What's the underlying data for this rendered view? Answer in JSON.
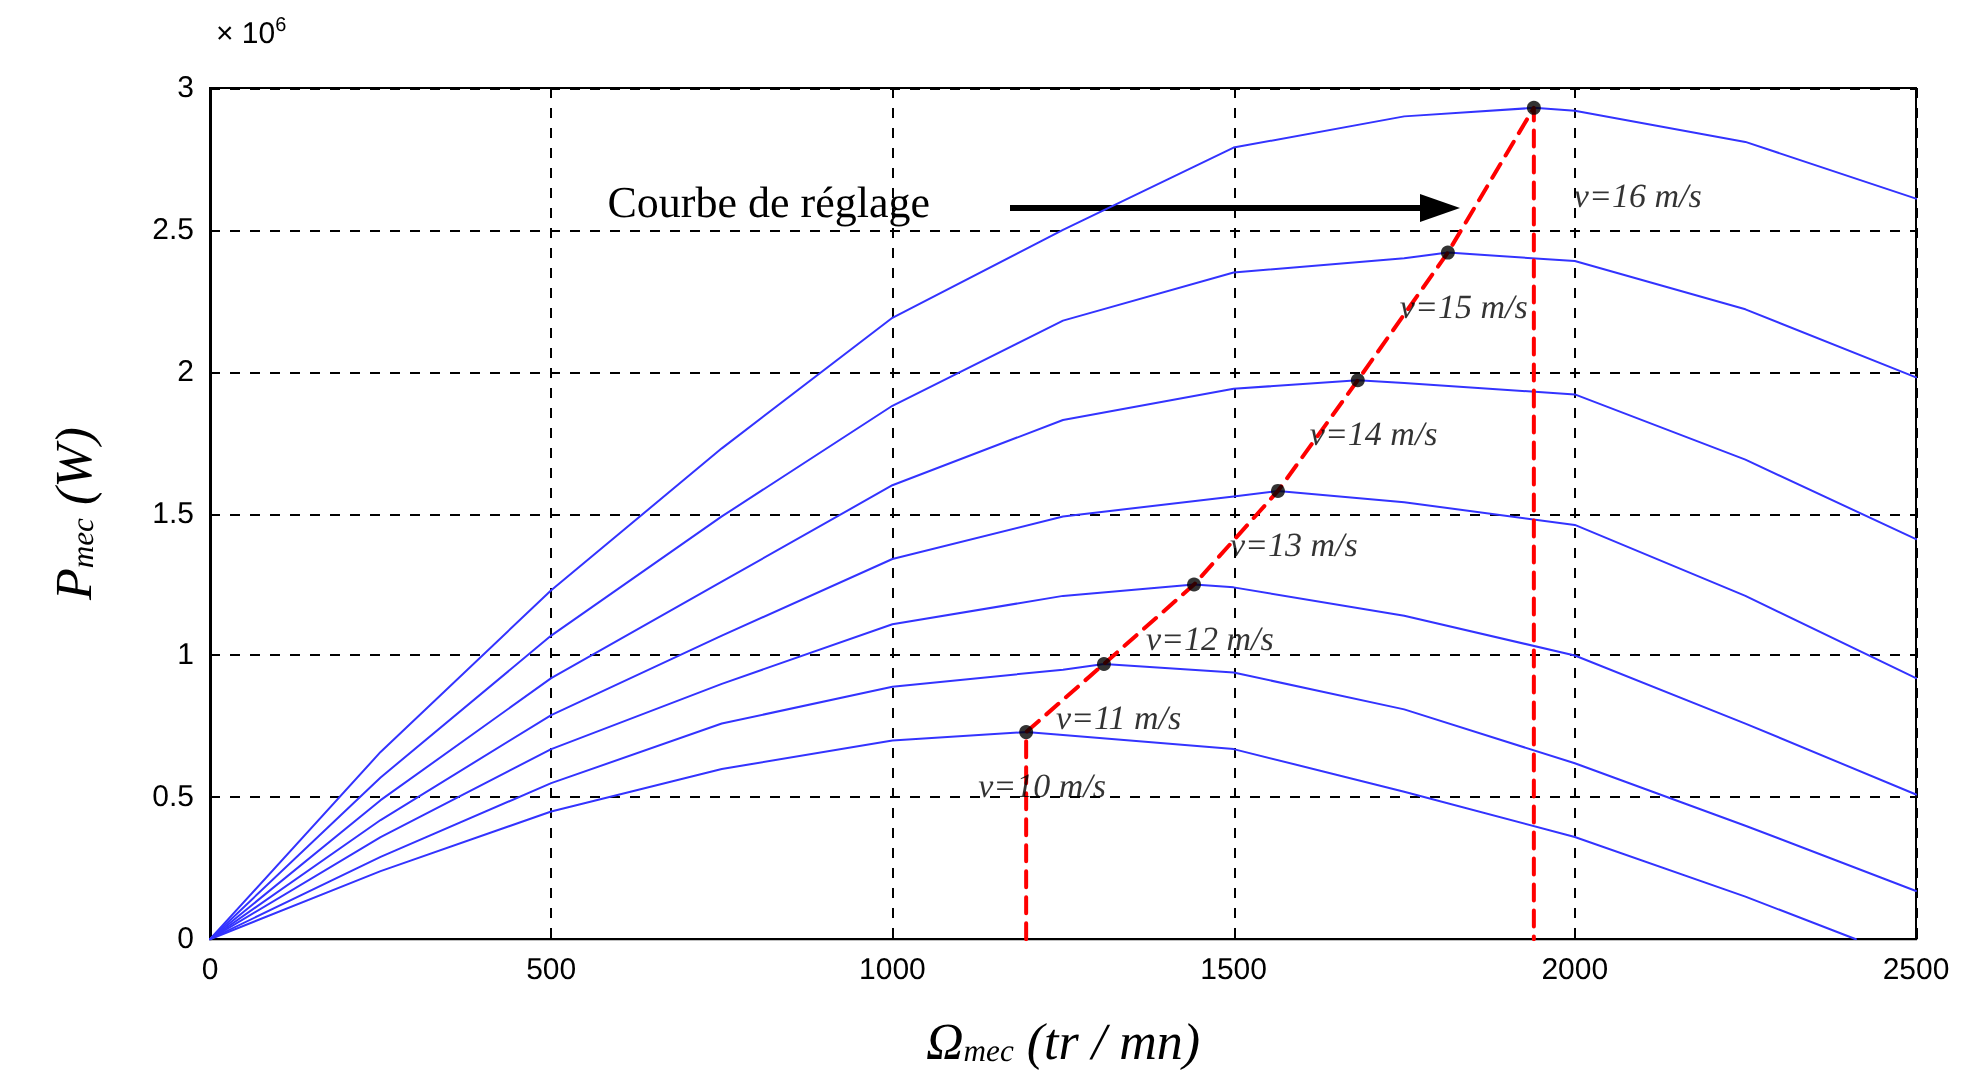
{
  "chart_data": {
    "type": "line",
    "xlabel": "Ω$_{mec}$ (tr / mn)",
    "ylabel": "P$_{mec}$ (W)",
    "xlim": [
      0,
      2500
    ],
    "xticks": [
      0,
      500,
      1000,
      1500,
      2000,
      2500
    ],
    "ylim": [
      0,
      3
    ],
    "yticks": [
      0,
      0.5,
      1,
      1.5,
      2,
      2.5,
      3
    ],
    "grid": true,
    "line_style": "solid",
    "marker": "none",
    "annotations": [
      "× 10$^{6}$",
      "Courbe de réglage",
      {
        "text": "v=16 m/s",
        "x": 1940,
        "y": 2.93
      },
      {
        "text": "v=15 m/s",
        "x": 1814,
        "y": 2.42
      },
      {
        "text": "v=14 m/s",
        "x": 1682,
        "y": 1.97
      },
      {
        "text": "v=13 m/s",
        "x": 1565,
        "y": 1.58
      },
      {
        "text": "v=12 m/s",
        "x": 1442,
        "y": 1.25
      },
      {
        "text": "v=11 m/s",
        "x": 1310,
        "y": 0.97
      },
      {
        "text": "v=10 m/s",
        "x": 1196,
        "y": 0.73
      }
    ],
    "series": [
      {
        "color": "#3333ff",
        "x": [
          0,
          250,
          500,
          750,
          1000,
          1250,
          1500,
          1750,
          1940,
          2000,
          2250,
          2500
        ],
        "values": [
          0,
          0.66,
          1.23,
          1.73,
          2.19,
          2.5,
          2.79,
          2.9,
          2.93,
          2.92,
          2.81,
          2.61
        ]
      },
      {
        "color": "#3333ff",
        "x": [
          0,
          250,
          500,
          750,
          1000,
          1250,
          1500,
          1750,
          1814,
          2000,
          2250,
          2500
        ],
        "values": [
          0,
          0.57,
          1.07,
          1.49,
          1.88,
          2.18,
          2.35,
          2.4,
          2.42,
          2.39,
          2.22,
          1.98
        ]
      },
      {
        "color": "#3333ff",
        "x": [
          0,
          250,
          500,
          750,
          1000,
          1250,
          1500,
          1682,
          1750,
          2000,
          2250,
          2500
        ],
        "values": [
          0,
          0.49,
          0.92,
          1.26,
          1.6,
          1.83,
          1.94,
          1.97,
          1.96,
          1.92,
          1.69,
          1.41
        ]
      },
      {
        "color": "#3333ff",
        "x": [
          0,
          250,
          500,
          750,
          1000,
          1250,
          1500,
          1565,
          1750,
          2000,
          2250,
          2500
        ],
        "values": [
          0,
          0.42,
          0.79,
          1.07,
          1.34,
          1.49,
          1.56,
          1.58,
          1.54,
          1.46,
          1.21,
          0.92
        ]
      },
      {
        "color": "#3333ff",
        "x": [
          0,
          250,
          500,
          750,
          1000,
          1250,
          1442,
          1500,
          1750,
          2000,
          2250,
          2500
        ],
        "values": [
          0,
          0.36,
          0.67,
          0.9,
          1.11,
          1.21,
          1.25,
          1.24,
          1.14,
          1.0,
          0.76,
          0.51
        ]
      },
      {
        "color": "#3333ff",
        "x": [
          0,
          250,
          500,
          750,
          1000,
          1250,
          1310,
          1500,
          1750,
          2000,
          2250,
          2500
        ],
        "values": [
          0,
          0.29,
          0.55,
          0.76,
          0.89,
          0.95,
          0.97,
          0.94,
          0.81,
          0.62,
          0.4,
          0.17
        ]
      },
      {
        "color": "#3333ff",
        "x": [
          0,
          250,
          500,
          750,
          1000,
          1196,
          1250,
          1500,
          1750,
          2000,
          2250,
          2412
        ],
        "values": [
          0,
          0.24,
          0.45,
          0.6,
          0.7,
          0.73,
          0.72,
          0.67,
          0.52,
          0.36,
          0.15,
          0
        ]
      },
      {
        "color": "#ff0000",
        "line_style": "dashed",
        "x": [
          1196,
          1196,
          1310,
          1442,
          1565,
          1682,
          1814,
          1940,
          1940
        ],
        "values": [
          0,
          0.73,
          0.97,
          1.25,
          1.58,
          1.97,
          2.42,
          2.93,
          0
        ]
      },
      {
        "type": "scatter",
        "marker": "circle",
        "color": "#000000",
        "x": [
          1196,
          1310,
          1442,
          1565,
          1682,
          1814,
          1940
        ],
        "values": [
          0.73,
          0.97,
          1.25,
          1.58,
          1.97,
          2.42,
          2.93
        ]
      }
    ]
  }
}
